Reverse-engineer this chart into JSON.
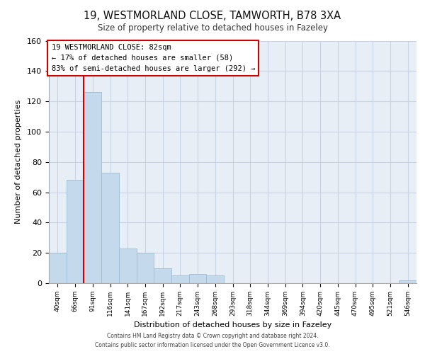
{
  "title": "19, WESTMORLAND CLOSE, TAMWORTH, B78 3XA",
  "subtitle": "Size of property relative to detached houses in Fazeley",
  "xlabel": "Distribution of detached houses by size in Fazeley",
  "ylabel": "Number of detached properties",
  "bar_color": "#c5d9ec",
  "bar_edge_color": "#9bbdd4",
  "categories": [
    "40sqm",
    "66sqm",
    "91sqm",
    "116sqm",
    "141sqm",
    "167sqm",
    "192sqm",
    "217sqm",
    "243sqm",
    "268sqm",
    "293sqm",
    "318sqm",
    "344sqm",
    "369sqm",
    "394sqm",
    "420sqm",
    "445sqm",
    "470sqm",
    "495sqm",
    "521sqm",
    "546sqm"
  ],
  "values": [
    20,
    68,
    126,
    73,
    23,
    20,
    10,
    5,
    6,
    5,
    0,
    0,
    0,
    0,
    0,
    0,
    0,
    0,
    0,
    0,
    2
  ],
  "ylim": [
    0,
    160
  ],
  "yticks": [
    0,
    20,
    40,
    60,
    80,
    100,
    120,
    140,
    160
  ],
  "property_line_x": 1.5,
  "annotation_title": "19 WESTMORLAND CLOSE: 82sqm",
  "annotation_line1": "← 17% of detached houses are smaller (58)",
  "annotation_line2": "83% of semi-detached houses are larger (292) →",
  "annotation_box_color": "#ffffff",
  "annotation_box_edge": "#cc0000",
  "property_line_color": "#cc0000",
  "grid_color": "#c8d4e4",
  "background_color": "#e8eef6",
  "footer_line1": "Contains HM Land Registry data © Crown copyright and database right 2024.",
  "footer_line2": "Contains public sector information licensed under the Open Government Licence v3.0."
}
